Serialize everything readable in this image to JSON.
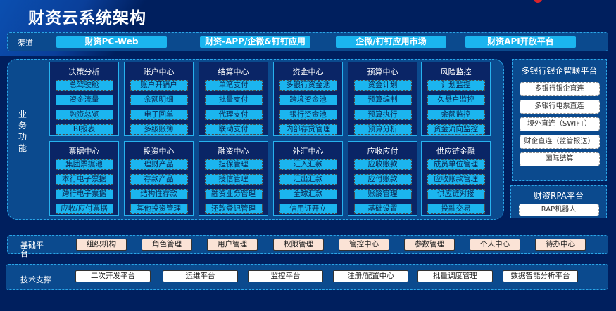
{
  "title": "财资云系统架构",
  "channel": {
    "label": "渠道",
    "items": [
      "财资PC-Web",
      "财资-APP/企微&钉钉应用",
      "企微/钉钉应用市场",
      "财资API开放平台"
    ]
  },
  "business": {
    "label": "业务功能",
    "modules": [
      {
        "title": "决策分析",
        "items": [
          "总驾驶舱",
          "资金流量",
          "融资总览",
          "BI报表"
        ]
      },
      {
        "title": "账户中心",
        "items": [
          "账户开销户",
          "余额明细",
          "电子回单",
          "多级账簿"
        ]
      },
      {
        "title": "结算中心",
        "items": [
          "单笔支付",
          "批量支付",
          "代理支付",
          "联动支付"
        ]
      },
      {
        "title": "资金中心",
        "items": [
          "多银行资金池",
          "跨境资金池",
          "银行资金池",
          "内部存贷管理"
        ]
      },
      {
        "title": "预算中心",
        "items": [
          "资金计划",
          "预算编制",
          "预算执行",
          "预算分析"
        ]
      },
      {
        "title": "风险监控",
        "items": [
          "计划监控",
          "久悬户监控",
          "余额监控",
          "资金流向监控"
        ]
      },
      {
        "title": "票据中心",
        "items": [
          "集团票据池",
          "本行电子票据",
          "跨行电子票据",
          "应收/应付票据"
        ]
      },
      {
        "title": "投资中心",
        "items": [
          "理财产品",
          "存款产品",
          "结构性存款",
          "其他投资管理"
        ]
      },
      {
        "title": "融资中心",
        "items": [
          "担保管理",
          "授信管理",
          "融资业务管理",
          "还款登记管理"
        ]
      },
      {
        "title": "外汇中心",
        "items": [
          "汇入汇款",
          "汇出汇款",
          "全球汇款",
          "信用证开立"
        ]
      },
      {
        "title": "应收应付",
        "items": [
          "应收账款",
          "应付账款",
          "账龄管理",
          "基础设置"
        ]
      },
      {
        "title": "供应链金融",
        "items": [
          "成员单位管理",
          "应收账款管理",
          "供应链对接",
          "投融交易"
        ]
      }
    ]
  },
  "bank_platform": {
    "title": "多银行银企智联平台",
    "items": [
      "多银行银企直连",
      "多银行电票直连",
      "境外直连（SWIFT）",
      "财企直连（监管报送）",
      "国际结算"
    ]
  },
  "rpa_platform": {
    "title": "财资RPA平台",
    "items": [
      "RAP机器人"
    ]
  },
  "base_platform": {
    "label": "基础平台",
    "items": [
      "组织机构",
      "角色管理",
      "用户管理",
      "权限管理",
      "管控中心",
      "参数管理",
      "个人中心",
      "待办中心"
    ]
  },
  "tech_support": {
    "label": "技术支撑",
    "items": [
      "二次开发平台",
      "运维平台",
      "监控平台",
      "注册/配置中心",
      "批量调度管理",
      "数据智能分析平台"
    ]
  },
  "colors": {
    "background": "#001f5e",
    "band": "#0b4a8e",
    "module_item": "#1bb5ef",
    "base_button": "#fbe3d6",
    "logo": "#d8232a"
  }
}
